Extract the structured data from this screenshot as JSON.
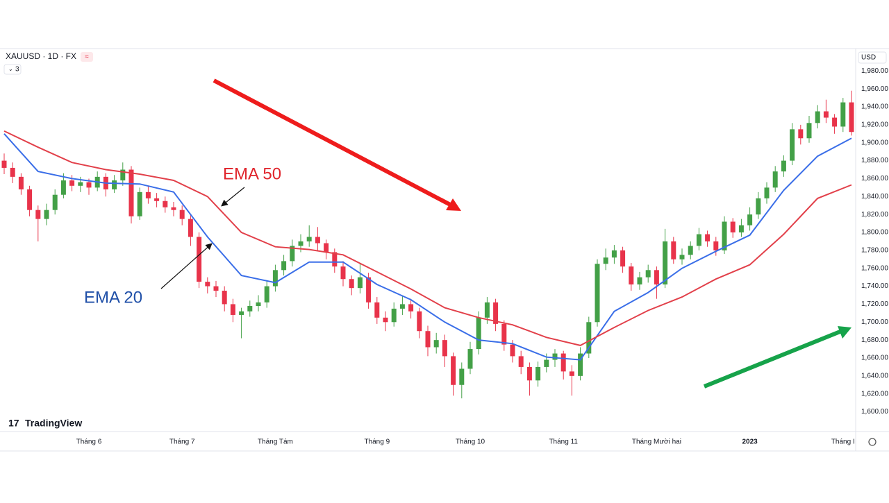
{
  "chart_data": {
    "type": "candlestick",
    "header": {
      "symbol": "XAUUSD · 1D · FX",
      "indicators": "3",
      "currency": "USD",
      "logo": "TradingView"
    },
    "categories": [
      null,
      null,
      null,
      null,
      null,
      null,
      null,
      null,
      null,
      null,
      "Tháng 6",
      null,
      null,
      null,
      null,
      null,
      null,
      null,
      null,
      null,
      null,
      "Tháng 7",
      null,
      null,
      null,
      null,
      null,
      null,
      null,
      null,
      null,
      null,
      "Tháng Tám",
      null,
      null,
      null,
      null,
      null,
      null,
      null,
      null,
      null,
      null,
      null,
      "Tháng 9",
      null,
      null,
      null,
      null,
      null,
      null,
      null,
      null,
      null,
      null,
      "Tháng 10",
      null,
      null,
      null,
      null,
      null,
      null,
      null,
      null,
      null,
      null,
      "Tháng 11",
      null,
      null,
      null,
      null,
      null,
      null,
      null,
      null,
      null,
      null,
      "Tháng Mười hai",
      null,
      null,
      null,
      null,
      null,
      null,
      null,
      null,
      null,
      null,
      "2023",
      null,
      null,
      null,
      null,
      null,
      null,
      null,
      null,
      null,
      null,
      "Tháng I",
      null
    ],
    "open": [
      1880,
      1872,
      1862,
      1848,
      1825,
      1815,
      1825,
      1842,
      1858,
      1852,
      1856,
      1850,
      1862,
      1848,
      1858,
      1870,
      1818,
      1845,
      1838,
      1835,
      1828,
      1825,
      1815,
      1795,
      1745,
      1740,
      1735,
      1720,
      1708,
      1712,
      1718,
      1722,
      1740,
      1758,
      1768,
      1785,
      1790,
      1795,
      1788,
      1778,
      1762,
      1748,
      1738,
      1750,
      1722,
      1705,
      1700,
      1715,
      1720,
      1712,
      1690,
      1672,
      1680,
      1662,
      1630,
      1648,
      1670,
      1705,
      1722,
      1698,
      1675,
      1662,
      1650,
      1635,
      1650,
      1658,
      1665,
      1645,
      1640,
      1665,
      1700,
      1765,
      1772,
      1780,
      1762,
      1742,
      1750,
      1758,
      1742,
      1790,
      1770,
      1775,
      1785,
      1798,
      1790,
      1780,
      1812,
      1800,
      1808,
      1820,
      1838,
      1850,
      1868,
      1880,
      1915,
      1905,
      1922,
      1935,
      1928,
      1918,
      1945
    ],
    "high": [
      1888,
      1878,
      1866,
      1852,
      1830,
      1832,
      1848,
      1866,
      1864,
      1862,
      1860,
      1868,
      1866,
      1864,
      1878,
      1874,
      1850,
      1852,
      1844,
      1840,
      1834,
      1830,
      1820,
      1800,
      1750,
      1746,
      1740,
      1726,
      1716,
      1724,
      1730,
      1746,
      1764,
      1775,
      1792,
      1798,
      1808,
      1806,
      1792,
      1782,
      1768,
      1752,
      1765,
      1755,
      1728,
      1712,
      1722,
      1730,
      1726,
      1716,
      1696,
      1688,
      1686,
      1666,
      1655,
      1678,
      1712,
      1728,
      1726,
      1702,
      1680,
      1668,
      1655,
      1656,
      1665,
      1670,
      1668,
      1652,
      1672,
      1706,
      1770,
      1782,
      1786,
      1784,
      1766,
      1756,
      1764,
      1762,
      1804,
      1795,
      1782,
      1790,
      1805,
      1802,
      1795,
      1818,
      1816,
      1815,
      1828,
      1845,
      1856,
      1874,
      1886,
      1922,
      1920,
      1930,
      1942,
      1948,
      1932,
      1950,
      1958
    ],
    "low": [
      1865,
      1855,
      1842,
      1818,
      1790,
      1808,
      1820,
      1838,
      1846,
      1845,
      1842,
      1846,
      1840,
      1844,
      1852,
      1810,
      1814,
      1832,
      1828,
      1822,
      1818,
      1808,
      1785,
      1738,
      1732,
      1728,
      1712,
      1700,
      1682,
      1706,
      1712,
      1716,
      1734,
      1752,
      1762,
      1778,
      1784,
      1780,
      1770,
      1755,
      1740,
      1730,
      1732,
      1715,
      1698,
      1690,
      1695,
      1708,
      1704,
      1682,
      1662,
      1665,
      1650,
      1618,
      1615,
      1642,
      1664,
      1698,
      1690,
      1668,
      1655,
      1642,
      1618,
      1628,
      1644,
      1650,
      1636,
      1618,
      1635,
      1660,
      1695,
      1758,
      1765,
      1755,
      1735,
      1736,
      1744,
      1726,
      1738,
      1765,
      1764,
      1770,
      1780,
      1784,
      1774,
      1776,
      1794,
      1795,
      1802,
      1815,
      1832,
      1845,
      1862,
      1875,
      1898,
      1900,
      1916,
      1922,
      1910,
      1912,
      1908
    ],
    "close": [
      1872,
      1862,
      1848,
      1825,
      1815,
      1825,
      1842,
      1858,
      1852,
      1856,
      1850,
      1862,
      1848,
      1858,
      1870,
      1818,
      1845,
      1838,
      1835,
      1828,
      1825,
      1815,
      1795,
      1745,
      1740,
      1735,
      1720,
      1708,
      1712,
      1718,
      1722,
      1740,
      1758,
      1768,
      1785,
      1790,
      1795,
      1788,
      1778,
      1762,
      1748,
      1738,
      1750,
      1722,
      1705,
      1700,
      1715,
      1720,
      1712,
      1690,
      1672,
      1680,
      1662,
      1630,
      1648,
      1670,
      1705,
      1722,
      1698,
      1675,
      1662,
      1650,
      1635,
      1650,
      1658,
      1665,
      1645,
      1640,
      1665,
      1700,
      1765,
      1772,
      1780,
      1762,
      1742,
      1750,
      1758,
      1742,
      1790,
      1770,
      1775,
      1785,
      1798,
      1790,
      1780,
      1812,
      1800,
      1808,
      1820,
      1838,
      1850,
      1868,
      1880,
      1915,
      1905,
      1922,
      1935,
      1928,
      1918,
      1945,
      1912
    ],
    "up_color": "#43a047",
    "down_color": "#e8334a",
    "lines": [
      {
        "color": "#3a6ee8",
        "x": [
          0,
          4,
          8,
          12,
          16,
          20,
          24,
          28,
          32,
          36,
          40,
          44,
          48,
          52,
          56,
          60,
          64,
          68,
          72,
          76,
          80,
          84,
          88,
          92,
          96,
          100
        ],
        "values": [
          1910,
          1868,
          1860,
          1855,
          1854,
          1845,
          1795,
          1752,
          1744,
          1767,
          1767,
          1742,
          1725,
          1700,
          1680,
          1676,
          1661,
          1658,
          1712,
          1733,
          1760,
          1779,
          1797,
          1847,
          1885,
          1905
        ]
      },
      {
        "color": "#e2404a",
        "x": [
          0,
          4,
          8,
          12,
          16,
          20,
          24,
          28,
          32,
          36,
          40,
          44,
          48,
          52,
          56,
          60,
          64,
          68,
          72,
          76,
          80,
          84,
          88,
          92,
          96,
          100
        ],
        "values": [
          1913,
          1895,
          1878,
          1870,
          1865,
          1858,
          1840,
          1800,
          1784,
          1781,
          1775,
          1756,
          1737,
          1716,
          1705,
          1697,
          1683,
          1674,
          1694,
          1713,
          1728,
          1748,
          1764,
          1798,
          1838,
          1853
        ]
      }
    ],
    "annotations": [
      {
        "text": "EMA 50",
        "color": "#e0242b"
      },
      {
        "text": "EMA 20",
        "color": "#2050a8"
      }
    ],
    "ylim": [
      1578,
      2005
    ],
    "yticks": [
      {
        "value": 1600,
        "label": "1,600.00"
      },
      {
        "value": 1620,
        "label": "1,620.00"
      },
      {
        "value": 1640,
        "label": "1,640.00"
      },
      {
        "value": 1660,
        "label": "1,660.00"
      },
      {
        "value": 1680,
        "label": "1,680.00"
      },
      {
        "value": 1700,
        "label": "1,700.00"
      },
      {
        "value": 1720,
        "label": "1,720.00"
      },
      {
        "value": 1740,
        "label": "1,740.00"
      },
      {
        "value": 1760,
        "label": "1,760.00"
      },
      {
        "value": 1780,
        "label": "1,780.00"
      },
      {
        "value": 1800,
        "label": "1,800.00"
      },
      {
        "value": 1820,
        "label": "1,820.00"
      },
      {
        "value": 1840,
        "label": "1,840.00"
      },
      {
        "value": 1860,
        "label": "1,860.00"
      },
      {
        "value": 1880,
        "label": "1,880.00"
      },
      {
        "value": 1900,
        "label": "1,900.00"
      },
      {
        "value": 1920,
        "label": "1,920.00"
      },
      {
        "value": 1940,
        "label": "1,940.00"
      },
      {
        "value": 1960,
        "label": "1,960.00"
      },
      {
        "value": 1980,
        "label": "1,980.00"
      }
    ],
    "grid": false
  }
}
